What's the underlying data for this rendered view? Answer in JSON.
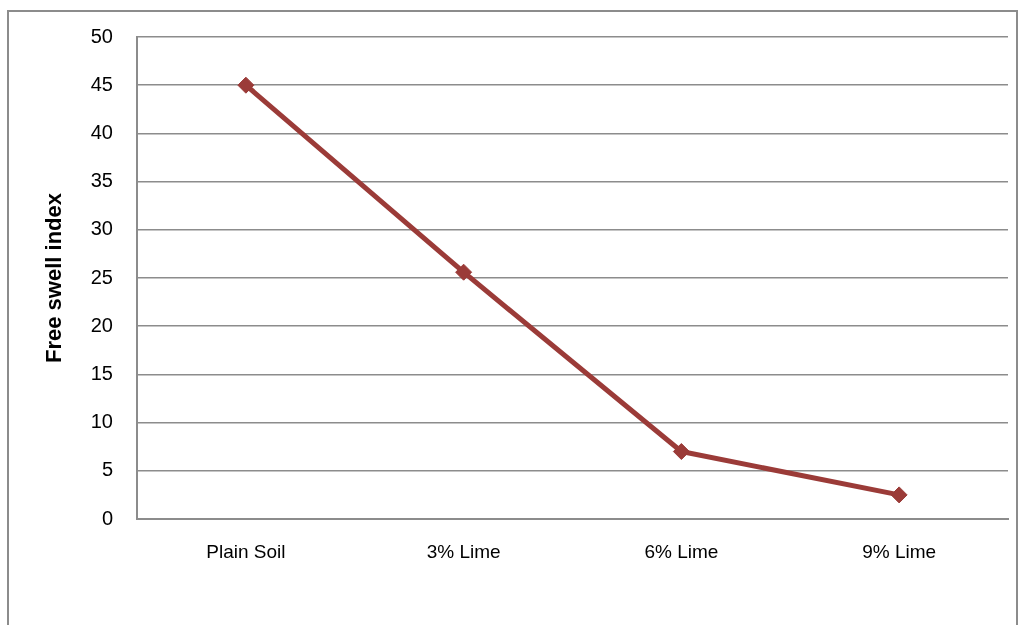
{
  "chart_data": {
    "type": "line",
    "categories": [
      "Plain Soil",
      "3% Lime",
      "6% Lime",
      "9% Lime"
    ],
    "series": [
      {
        "color": "#9b3b38",
        "values": [
          45,
          25.6,
          7,
          2.5
        ]
      }
    ],
    "ylabel": "Free swell index",
    "ylim": [
      0,
      50
    ],
    "yticks": [
      0,
      5,
      10,
      15,
      20,
      25,
      30,
      35,
      40,
      45,
      50
    ],
    "grid": "y",
    "marker": "diamond",
    "line_style": "solid"
  }
}
